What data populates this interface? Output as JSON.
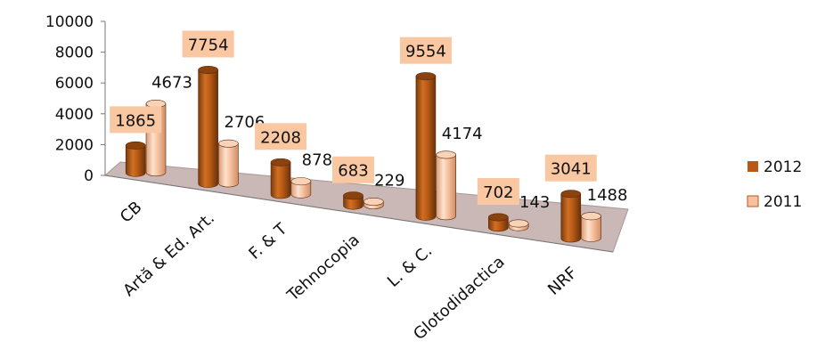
{
  "chart_data": {
    "type": "bar",
    "categories": [
      "CB",
      "Artă & Ed. Art.",
      "F. & T",
      "Tehnocopia",
      "L. & C.",
      "Glotodidactica",
      "NRF"
    ],
    "series": [
      {
        "name": "2012",
        "values": [
          1865,
          7754,
          2208,
          683,
          9554,
          702,
          3041
        ],
        "color": "#b85a16"
      },
      {
        "name": "2011",
        "values": [
          4673,
          2706,
          878,
          229,
          4174,
          143,
          1488
        ],
        "color": "#f6c1a0"
      }
    ],
    "data_label_colors": {
      "2012": [
        "#111111",
        "#111111",
        "#111111",
        "#111111",
        "#e02020",
        "#111111",
        "#111111"
      ],
      "2011": [
        "#e02020",
        "#111111",
        "#111111",
        "#111111",
        "#111111",
        "#111111",
        "#111111"
      ]
    },
    "y_ticks": [
      "0",
      "2000",
      "4000",
      "6000",
      "8000",
      "10000"
    ],
    "ylim": [
      0,
      10000
    ],
    "legend": "right",
    "three_d": true,
    "label_box_color": "#f9c7a1",
    "floor_color": "#c9b8b6"
  }
}
